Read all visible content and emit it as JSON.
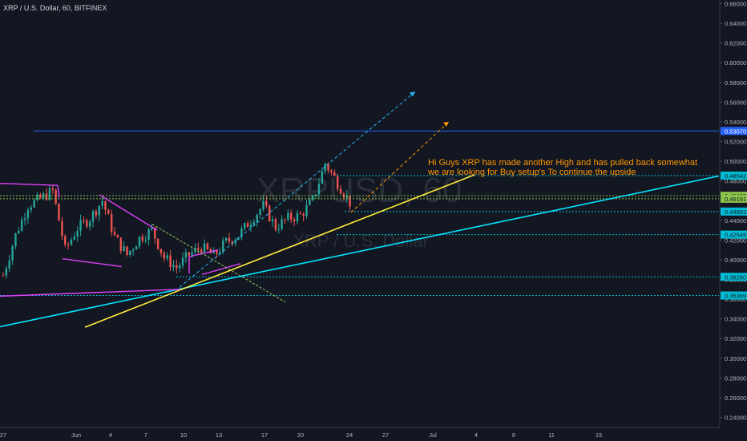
{
  "header": {
    "symbol": "XRP / U.S. Dollar",
    "interval": "60",
    "exchange": "BITFINEX"
  },
  "watermark": {
    "ticker": "XRPUSD, 60",
    "name": "XRP / U.S. Dollar"
  },
  "annotation": {
    "line1": "Hi Guys XRP has made another High and has pulled back somewhat",
    "line2": "we are looking for Buy setup's To continue the upside"
  },
  "colors": {
    "background": "#131722",
    "up": "#26a69a",
    "down": "#ef5350",
    "trendline_yellow": "#ffeb3b",
    "trendline_cyan": "#00e5ff",
    "magenta": "#e040fb",
    "level_blue": "#2962ff",
    "level_cyan": "#00bcd4",
    "level_green": "#8bc34a",
    "projection_blue": "#29b6f6",
    "projection_orange": "#ff9800"
  },
  "chart_data": {
    "type": "candlestick",
    "symbol": "XRP / U.S. Dollar",
    "interval": "60",
    "exchange": "BITFINEX",
    "y_axis": {
      "ticks": [
        "0.66000",
        "0.64000",
        "0.62000",
        "0.60000",
        "0.58000",
        "0.56000",
        "0.54000",
        "0.52000",
        "0.50000",
        "0.48000",
        "0.46000",
        "0.44000",
        "0.42000",
        "0.40000",
        "0.38000",
        "0.36000",
        "0.34000",
        "0.32000",
        "0.30000",
        "0.28000",
        "0.26000",
        "0.24000"
      ],
      "range": [
        0.235,
        0.665
      ]
    },
    "x_axis": {
      "ticks": [
        "27",
        "Jun",
        "4",
        "7",
        "10",
        "13",
        "17",
        "20",
        "24",
        "27",
        "Jul",
        "4",
        "8",
        "11",
        "15"
      ]
    },
    "price_levels": [
      {
        "label": "0.53070",
        "value": 0.5307,
        "color": "#2962ff",
        "text_color": "#ffffff"
      },
      {
        "label": "0.48542",
        "value": 0.48542,
        "color": "#00bcd4",
        "text_color": "#131722"
      },
      {
        "label": "0.46495",
        "value": 0.46495,
        "color": "#8bc34a",
        "text_color": "#131722"
      },
      {
        "label": "0.46191",
        "value": 0.46191,
        "color": "#8bc34a",
        "text_color": "#131722"
      },
      {
        "label": "0.44893",
        "value": 0.44893,
        "color": "#00bcd4",
        "text_color": "#131722"
      },
      {
        "label": "0.42549",
        "value": 0.42549,
        "color": "#00bcd4",
        "text_color": "#131722"
      },
      {
        "label": "0.38260",
        "value": 0.3826,
        "color": "#00bcd4",
        "text_color": "#131722"
      },
      {
        "label": "0.36369",
        "value": 0.36369,
        "color": "#00bcd4",
        "text_color": "#131722"
      }
    ],
    "price_anchors": [
      [
        "May 27",
        0.384
      ],
      [
        "May 28",
        0.425
      ],
      [
        "May 29",
        0.455
      ],
      [
        "May 30",
        0.462
      ],
      [
        "May 31",
        0.47
      ],
      [
        "Jun 1",
        0.41
      ],
      [
        "Jun 2",
        0.432
      ],
      [
        "Jun 3",
        0.442
      ],
      [
        "Jun 4",
        0.46
      ],
      [
        "Jun 5",
        0.423
      ],
      [
        "Jun 6",
        0.405
      ],
      [
        "Jun 7",
        0.422
      ],
      [
        "Jun 8",
        0.43
      ],
      [
        "Jun 9",
        0.402
      ],
      [
        "Jun 10",
        0.392
      ],
      [
        "Jun 11",
        0.405
      ],
      [
        "Jun 12",
        0.413
      ],
      [
        "Jun 13",
        0.404
      ],
      [
        "Jun 14",
        0.418
      ],
      [
        "Jun 15",
        0.425
      ],
      [
        "Jun 16",
        0.44
      ],
      [
        "Jun 17",
        0.455
      ],
      [
        "Jun 18",
        0.433
      ],
      [
        "Jun 19",
        0.442
      ],
      [
        "Jun 20",
        0.445
      ],
      [
        "Jun 21",
        0.46
      ],
      [
        "Jun 22",
        0.498
      ],
      [
        "Jun 23",
        0.478
      ],
      [
        "Jun 24",
        0.458
      ]
    ]
  }
}
